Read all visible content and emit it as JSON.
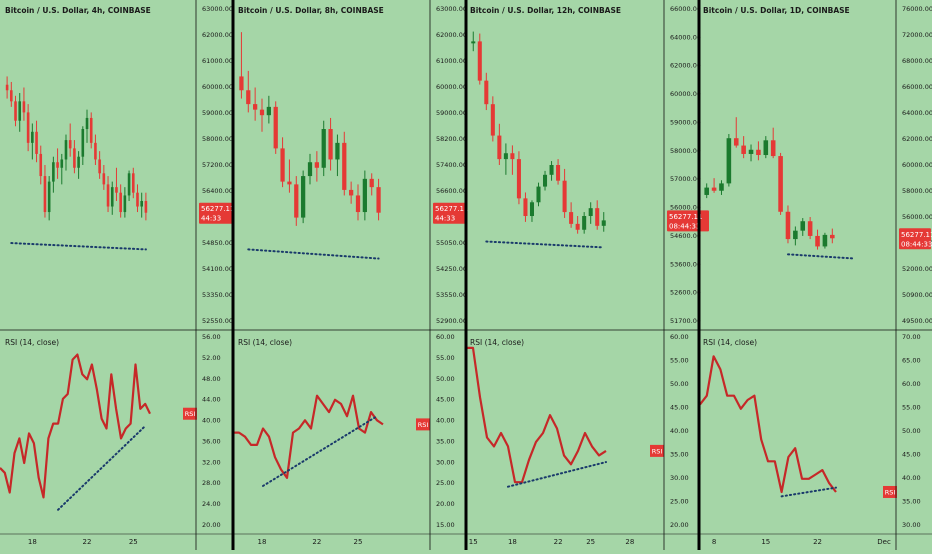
{
  "background": "#a5d6a7",
  "colors": {
    "up": "#1b7a2e",
    "down": "#e53935",
    "rsi": "#c62828",
    "trend": "#1a3a6b",
    "grid": "#111111",
    "tag": "#e53935"
  },
  "rsi_ticks": [
    "60.00",
    "55.00",
    "50.00",
    "45.00",
    "40.00",
    "35.00",
    "30.00",
    "25.00",
    "20.00",
    "15.00"
  ],
  "chart_data": [
    {
      "id": "p1",
      "type": "candlestick",
      "title": "Bitcoin / U.S. Dollar, 4h, COINBASE",
      "price_ticks": [
        "63000.00",
        "62000.00",
        "61000.00",
        "60000.00",
        "59000.00",
        "58000.00",
        "57200.00",
        "56400.00",
        "55600.00",
        "54850.00",
        "54100.00",
        "53350.00",
        "52550.00"
      ],
      "price_range": [
        52400,
        63600
      ],
      "last_price": "56277.11",
      "countdown": "44:33",
      "candles": [
        [
          60900,
          61200,
          60400,
          60700
        ],
        [
          60700,
          61000,
          60100,
          60300
        ],
        [
          60300,
          60500,
          59400,
          59600
        ],
        [
          59600,
          60600,
          59200,
          60300
        ],
        [
          60300,
          60800,
          59600,
          59900
        ],
        [
          59900,
          60200,
          58500,
          58800
        ],
        [
          58800,
          59500,
          58200,
          59200
        ],
        [
          59200,
          59600,
          58100,
          58400
        ],
        [
          58400,
          58700,
          57300,
          57600
        ],
        [
          57600,
          58000,
          56100,
          56300
        ],
        [
          56300,
          57600,
          56000,
          57400
        ],
        [
          57400,
          58300,
          57000,
          58100
        ],
        [
          58100,
          58600,
          57500,
          57900
        ],
        [
          57900,
          58400,
          57300,
          58200
        ],
        [
          58200,
          59100,
          57800,
          58900
        ],
        [
          58900,
          59500,
          58300,
          58600
        ],
        [
          58600,
          58900,
          57700,
          57900
        ],
        [
          57900,
          58500,
          57500,
          58300
        ],
        [
          58300,
          59400,
          58000,
          59300
        ],
        [
          59300,
          60000,
          58800,
          59700
        ],
        [
          59700,
          59900,
          58600,
          58800
        ],
        [
          58800,
          59100,
          58000,
          58200
        ],
        [
          58200,
          58500,
          57500,
          57700
        ],
        [
          57700,
          58000,
          57100,
          57300
        ],
        [
          57300,
          57600,
          56300,
          56500
        ],
        [
          56500,
          57400,
          56200,
          57200
        ],
        [
          57200,
          57900,
          56700,
          57000
        ],
        [
          57000,
          57300,
          56100,
          56300
        ],
        [
          56300,
          57200,
          56100,
          56900
        ],
        [
          56900,
          57800,
          56700,
          57700
        ],
        [
          57700,
          57900,
          56800,
          57000
        ],
        [
          57000,
          57300,
          56300,
          56500
        ],
        [
          56500,
          57000,
          56100,
          56700
        ],
        [
          56700,
          57000,
          56000,
          56277
        ]
      ],
      "trend": [
        [
          1,
          55180
        ],
        [
          33,
          54950
        ]
      ],
      "x_ticks": [
        {
          "label": "18",
          "index": 6
        },
        {
          "label": "22",
          "index": 19
        },
        {
          "label": "25",
          "index": 30
        }
      ],
      "rsi": {
        "label": "RSI (14, close)",
        "ticks": [
          "56.00",
          "52.00",
          "48.00",
          "44.00",
          "40.00",
          "36.00",
          "32.00",
          "28.00",
          "24.00",
          "20.00"
        ],
        "range": [
          18,
          58
        ],
        "tag": "RSI",
        "values": [
          30,
          29,
          25,
          33,
          36,
          31,
          37,
          35,
          28,
          24,
          36,
          39,
          39,
          44,
          45,
          52,
          53,
          49,
          48,
          51,
          46,
          40,
          38,
          49,
          42,
          36,
          38,
          39,
          51,
          42,
          43,
          41
        ],
        "trend": [
          [
            12,
            21.5
          ],
          [
            30,
            38.5
          ]
        ]
      }
    },
    {
      "id": "p2",
      "type": "candlestick",
      "title": "Bitcoin / U.S. Dollar, 8h, COINBASE",
      "price_ticks": [
        "63000.00",
        "62000.00",
        "61000.00",
        "60000.00",
        "59000.00",
        "58200.00",
        "57400.00",
        "56600.00",
        "55800.00",
        "55050.00",
        "54250.00",
        "53550.00",
        "52900.00"
      ],
      "price_range": [
        52400,
        63600
      ],
      "last_price": "56277.11",
      "countdown": "44:33",
      "candles": [
        [
          61200,
          62800,
          60400,
          60700
        ],
        [
          60700,
          61400,
          59900,
          60200
        ],
        [
          60200,
          60800,
          59600,
          60000
        ],
        [
          60000,
          60400,
          59200,
          59800
        ],
        [
          59800,
          60500,
          59500,
          60100
        ],
        [
          60100,
          60300,
          58400,
          58600
        ],
        [
          58600,
          59000,
          57200,
          57400
        ],
        [
          57400,
          58200,
          57000,
          57300
        ],
        [
          57300,
          57600,
          55800,
          56100
        ],
        [
          56100,
          57800,
          55900,
          57600
        ],
        [
          57600,
          58400,
          57300,
          58100
        ],
        [
          58100,
          58500,
          57400,
          57900
        ],
        [
          57900,
          59600,
          57600,
          59300
        ],
        [
          59300,
          59700,
          57800,
          58200
        ],
        [
          58200,
          59100,
          57600,
          58800
        ],
        [
          58800,
          59200,
          56900,
          57100
        ],
        [
          57100,
          57400,
          56600,
          56900
        ],
        [
          56900,
          57300,
          56000,
          56300
        ],
        [
          56300,
          57800,
          56000,
          57500
        ],
        [
          57500,
          57700,
          56900,
          57200
        ],
        [
          57200,
          57500,
          56000,
          56277
        ]
      ],
      "trend": [
        [
          1,
          54950
        ],
        [
          20,
          54620
        ]
      ],
      "x_ticks": [
        {
          "label": "18",
          "index": 3
        },
        {
          "label": "22",
          "index": 11
        },
        {
          "label": "25",
          "index": 17
        }
      ],
      "rsi": {
        "label": "RSI (14, close)",
        "ticks": [
          "60.00",
          "55.00",
          "50.00",
          "45.00",
          "40.00",
          "35.00",
          "30.00",
          "25.00",
          "20.00",
          "15.00"
        ],
        "range": [
          13,
          61
        ],
        "tag": "RSI",
        "values": [
          36,
          36,
          35,
          33,
          33,
          37,
          35,
          30,
          27,
          25,
          36,
          37,
          39,
          37,
          45,
          43,
          41,
          44,
          43,
          40,
          45,
          37,
          36,
          41,
          39,
          38
        ],
        "trend": [
          [
            5,
            23
          ],
          [
            24,
            40
          ]
        ]
      }
    },
    {
      "id": "p3",
      "type": "candlestick",
      "title": "Bitcoin / U.S. Dollar, 12h, COINBASE",
      "price_ticks": [
        "66000.00",
        "64000.00",
        "62000.00",
        "60000.00",
        "59000.00",
        "58000.00",
        "57000.00",
        "56000.00",
        "54600.00",
        "53600.00",
        "52600.00",
        "51700.00"
      ],
      "price_range": [
        51200,
        67000
      ],
      "last_price": "56277.11",
      "countdown": "08:44:33",
      "candles": [
        [
          65300,
          65900,
          64900,
          65400
        ],
        [
          65400,
          65800,
          63200,
          63400
        ],
        [
          63400,
          63800,
          61900,
          62200
        ],
        [
          62200,
          62600,
          60300,
          60600
        ],
        [
          60600,
          61200,
          59100,
          59400
        ],
        [
          59400,
          60200,
          58600,
          59700
        ],
        [
          59700,
          60100,
          58600,
          59400
        ],
        [
          59400,
          59800,
          57100,
          57400
        ],
        [
          57400,
          57700,
          56200,
          56500
        ],
        [
          56500,
          57300,
          56200,
          57200
        ],
        [
          57200,
          58200,
          57000,
          58000
        ],
        [
          58000,
          58800,
          57800,
          58600
        ],
        [
          58600,
          59300,
          58300,
          59100
        ],
        [
          59100,
          59400,
          58100,
          58300
        ],
        [
          58300,
          58900,
          56400,
          56700
        ],
        [
          56700,
          57200,
          55900,
          56100
        ],
        [
          56100,
          56500,
          55600,
          55800
        ],
        [
          55800,
          56700,
          55600,
          56500
        ],
        [
          56500,
          57200,
          56100,
          56900
        ],
        [
          56900,
          57300,
          55800,
          56000
        ],
        [
          56000,
          56700,
          55700,
          56277
        ]
      ],
      "trend": [
        [
          2,
          55200
        ],
        [
          20,
          54900
        ]
      ],
      "x_ticks": [
        {
          "label": "15",
          "index": 0
        },
        {
          "label": "18",
          "index": 6
        },
        {
          "label": "22",
          "index": 13
        },
        {
          "label": "25",
          "index": 18
        },
        {
          "label": "28",
          "index": 24
        }
      ],
      "rsi": {
        "label": "RSI (14, close)",
        "ticks": [
          "60.00",
          "55.00",
          "50.00",
          "45.00",
          "40.00",
          "35.00",
          "30.00",
          "25.00",
          "20.00"
        ],
        "range": [
          17,
          61
        ],
        "tag": "RSI",
        "values": [
          57,
          57,
          46,
          37,
          35,
          38,
          35,
          27,
          27,
          32,
          36,
          38,
          42,
          39,
          33,
          31,
          34,
          38,
          35,
          33,
          34
        ],
        "trend": [
          [
            6,
            26
          ],
          [
            20,
            31.5
          ]
        ]
      }
    },
    {
      "id": "p4",
      "type": "candlestick",
      "title": "Bitcoin / U.S. Dollar, 1D, COINBASE",
      "price_ticks": [
        "76000.00",
        "72000.00",
        "68000.00",
        "66000.00",
        "64000.00",
        "62000.00",
        "60000.00",
        "58000.00",
        "56000.00",
        "54000.00",
        "52000.00",
        "50900.00",
        "49500.00"
      ],
      "price_range": [
        48500,
        78000
      ],
      "last_price": "56277.11",
      "countdown": "08:44:33",
      "candles": [
        [
          60400,
          61500,
          60100,
          61100
        ],
        [
          61100,
          62000,
          60600,
          60800
        ],
        [
          60800,
          61800,
          60400,
          61500
        ],
        [
          61500,
          66200,
          61200,
          65800
        ],
        [
          65800,
          67800,
          64900,
          65100
        ],
        [
          65100,
          66000,
          63900,
          64300
        ],
        [
          64300,
          65200,
          63600,
          64700
        ],
        [
          64700,
          65500,
          63700,
          64200
        ],
        [
          64200,
          66000,
          63900,
          65600
        ],
        [
          65600,
          66800,
          63900,
          64100
        ],
        [
          64100,
          64400,
          58500,
          58800
        ],
        [
          58800,
          59400,
          55800,
          56200
        ],
        [
          56200,
          57400,
          55600,
          57000
        ],
        [
          57000,
          58200,
          56500,
          57900
        ],
        [
          57900,
          58300,
          56200,
          56500
        ],
        [
          56500,
          57100,
          55200,
          55500
        ],
        [
          55500,
          56800,
          55300,
          56600
        ],
        [
          56600,
          57200,
          55800,
          56277
        ]
      ],
      "trend": [
        [
          11,
          54750
        ],
        [
          20,
          54350
        ]
      ],
      "x_ticks": [
        {
          "label": "8",
          "index": 1
        },
        {
          "label": "15",
          "index": 8
        },
        {
          "label": "22",
          "index": 15
        },
        {
          "label": "Dec",
          "index": 24
        }
      ],
      "rsi": {
        "label": "RSI (14, close)",
        "ticks": [
          "70.00",
          "65.00",
          "60.00",
          "55.00",
          "50.00",
          "45.00",
          "40.00",
          "35.00",
          "30.00"
        ],
        "range": [
          28,
          73
        ],
        "tag": "RSI",
        "values": [
          56,
          58,
          67,
          64,
          58,
          58,
          55,
          57,
          58,
          48,
          43,
          43,
          36,
          44,
          46,
          39,
          39,
          40,
          41,
          38,
          36
        ],
        "trend": [
          [
            12,
            35
          ],
          [
            20,
            37
          ]
        ]
      }
    }
  ]
}
